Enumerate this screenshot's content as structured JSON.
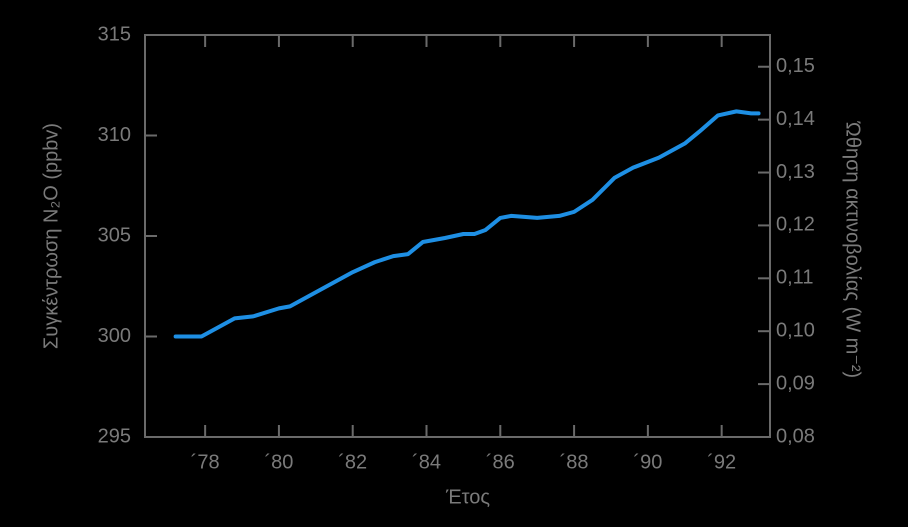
{
  "chart_data": {
    "type": "line",
    "x_label": "Έτος",
    "y_label": "Συγκέντρωση N₂O (ppbv)",
    "y2_label": "Ώθηση ακτινοβολίας (W m⁻²)",
    "x": [
      1977.2,
      1977.9,
      1978.8,
      1979.3,
      1980,
      1980.3,
      1981,
      1982,
      1982.6,
      1983.1,
      1983.5,
      1983.9,
      1984.5,
      1985,
      1985.3,
      1985.6,
      1986,
      1986.3,
      1987,
      1987.6,
      1988,
      1988.5,
      1989.1,
      1989.6,
      1990.3,
      1991,
      1991.4,
      1991.9,
      1992.4,
      1992.8,
      1993
    ],
    "series": [
      {
        "color": "#1e8fe4",
        "values": [
          300.0,
          300.0,
          300.9,
          301.0,
          301.4,
          301.5,
          302.2,
          303.2,
          303.7,
          304.0,
          304.1,
          304.7,
          304.9,
          305.1,
          305.1,
          305.3,
          305.9,
          306.0,
          305.9,
          306.0,
          306.2,
          306.8,
          307.9,
          308.4,
          308.9,
          309.6,
          310.2,
          311.0,
          311.2,
          311.1,
          311.1
        ]
      }
    ],
    "xlim": [
      1976.37,
      1993.31
    ],
    "xticks": [
      {
        "value": 1978,
        "label": "´78"
      },
      {
        "value": 1980,
        "label": "´80"
      },
      {
        "value": 1982,
        "label": "´82"
      },
      {
        "value": 1984,
        "label": "´84"
      },
      {
        "value": 1986,
        "label": "´86"
      },
      {
        "value": 1988,
        "label": "´88"
      },
      {
        "value": 1990,
        "label": "´90"
      },
      {
        "value": 1992,
        "label": "´92"
      }
    ],
    "ylim": [
      295,
      315
    ],
    "yticks": [
      295,
      300,
      305,
      310,
      315
    ],
    "y2lim": [
      0.08,
      0.156
    ],
    "y2ticks": [
      {
        "value": 0.08,
        "label": "0,08"
      },
      {
        "value": 0.09,
        "label": "0,09"
      },
      {
        "value": 0.1,
        "label": "0,10"
      },
      {
        "value": 0.11,
        "label": "0,11"
      },
      {
        "value": 0.12,
        "label": "0,12"
      },
      {
        "value": 0.13,
        "label": "0,13"
      },
      {
        "value": 0.14,
        "label": "0,14"
      },
      {
        "value": 0.15,
        "label": "0,15"
      }
    ]
  }
}
